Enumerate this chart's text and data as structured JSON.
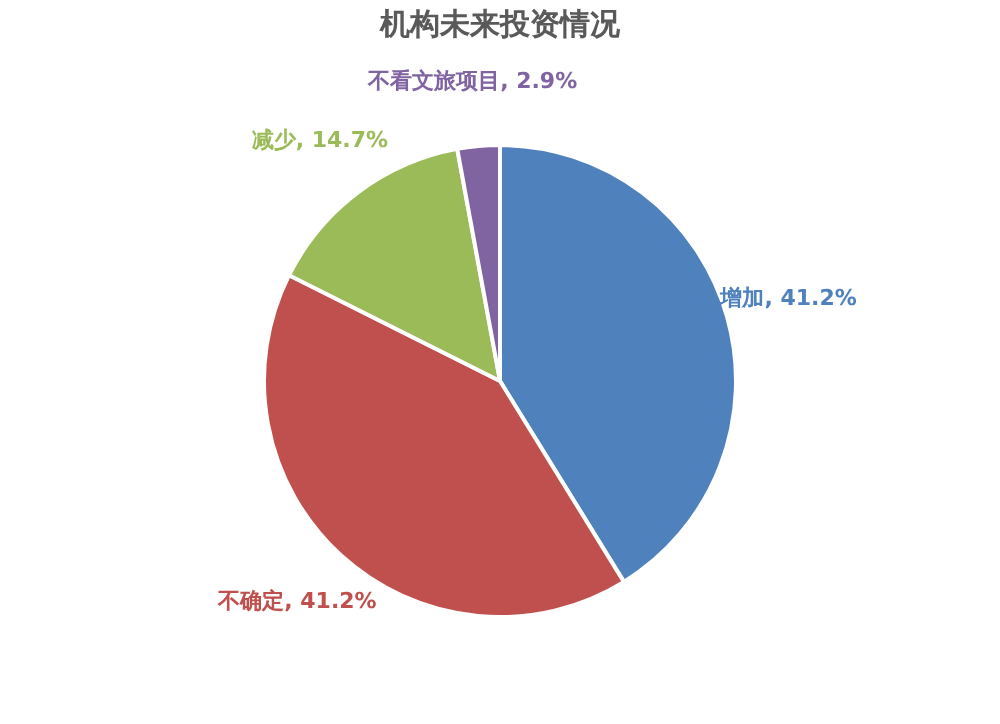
{
  "chart_data": {
    "type": "pie",
    "title": "机构未来投资情况",
    "categories": [
      "增加",
      "不确定",
      "减少",
      "不看文旅项目"
    ],
    "values": [
      41.2,
      41.2,
      14.7,
      2.9
    ],
    "value_labels": [
      "41.2%",
      "41.2%",
      "14.7%",
      "2.9%"
    ],
    "colors": [
      "#4f81bd",
      "#c0504d",
      "#9bbb59",
      "#8064a2"
    ],
    "legend": false
  }
}
